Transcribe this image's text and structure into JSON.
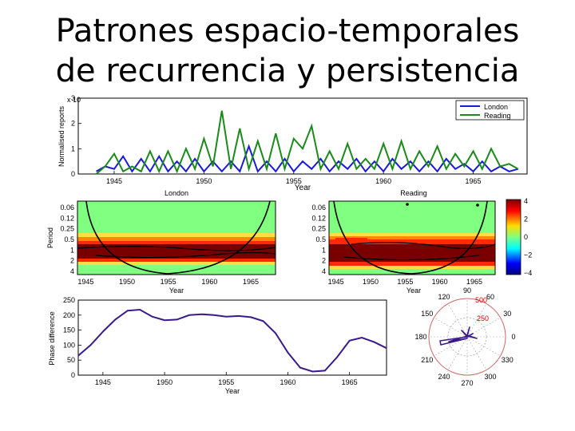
{
  "slide": {
    "title_line1": "Patrones espacio-temporales",
    "title_line2": "de recurrencia y persistencia"
  },
  "panel1": {
    "ylabel": "Normalised reports",
    "xlabel": "Year",
    "y_ticks": [
      "0",
      "1",
      "2",
      "3"
    ],
    "x_ticks": [
      "1945",
      "1950",
      "1955",
      "1960",
      "1965"
    ],
    "legend": [
      {
        "name": "London",
        "color": "#1a1adc"
      },
      {
        "name": "Reading",
        "color": "#1a8a1a"
      }
    ]
  },
  "wavelet": {
    "left_title": "London",
    "right_title": "Reading",
    "ylabel": "Period",
    "xlabel": "Year",
    "y_ticks": [
      "0.06",
      "0.12",
      "0.25",
      "0.5",
      "1",
      "2",
      "4"
    ],
    "x_ticks": [
      "1945",
      "1950",
      "1955",
      "1960",
      "1965"
    ],
    "colorbar_ticks": [
      "4",
      "2",
      "0",
      "−2",
      "−4"
    ]
  },
  "phase": {
    "ylabel": "Phase difference",
    "xlabel": "Year",
    "y_ticks": [
      "250",
      "200",
      "150",
      "100",
      "50",
      "0"
    ],
    "x_ticks": [
      "1945",
      "1950",
      "1955",
      "1960",
      "1965"
    ]
  },
  "polar": {
    "angle_labels": [
      "90",
      "60",
      "30",
      "0",
      "330",
      "300",
      "270",
      "240",
      "210",
      "180",
      "150",
      "120"
    ],
    "radius_labels": [
      "500",
      "250"
    ]
  },
  "chart_data": [
    {
      "type": "line",
      "xlabel": "Year",
      "ylabel": "Normalised reports",
      "xlim": [
        1943,
        1968
      ],
      "ylim": [
        0,
        3
      ],
      "series": [
        {
          "name": "London",
          "x": [
            1944.0,
            1944.5,
            1945.0,
            1945.5,
            1946.0,
            1946.5,
            1947.0,
            1947.5,
            1948.0,
            1948.5,
            1949.0,
            1949.5,
            1950.0,
            1950.5,
            1951.0,
            1951.5,
            1952.0,
            1952.5,
            1953.0,
            1953.5,
            1954.0,
            1954.5,
            1955.0,
            1955.5,
            1956.0,
            1956.5,
            1957.0,
            1957.5,
            1958.0,
            1958.5,
            1959.0,
            1959.5,
            1960.0,
            1960.5,
            1961.0,
            1961.5,
            1962.0,
            1962.5,
            1963.0,
            1963.5,
            1964.0,
            1964.5,
            1965.0,
            1965.5,
            1966.0,
            1966.5,
            1967.0,
            1967.5
          ],
          "values": [
            0.1,
            0.3,
            0.2,
            0.7,
            0.1,
            0.6,
            0.1,
            0.7,
            0.1,
            0.5,
            0.1,
            0.6,
            0.1,
            0.5,
            0.1,
            0.5,
            0.1,
            1.1,
            0.1,
            0.5,
            0.1,
            0.6,
            0.1,
            0.5,
            0.2,
            0.6,
            0.1,
            0.5,
            0.2,
            0.6,
            0.1,
            0.5,
            0.1,
            0.6,
            0.2,
            0.5,
            0.1,
            0.5,
            0.1,
            0.6,
            0.2,
            0.4,
            0.1,
            0.5,
            0.1,
            0.3,
            0.1,
            0.2
          ]
        },
        {
          "name": "Reading",
          "x": [
            1944.0,
            1944.5,
            1945.0,
            1945.5,
            1946.0,
            1946.5,
            1947.0,
            1947.5,
            1948.0,
            1948.5,
            1949.0,
            1949.5,
            1950.0,
            1950.5,
            1951.0,
            1951.5,
            1952.0,
            1952.5,
            1953.0,
            1953.5,
            1954.0,
            1954.5,
            1955.0,
            1955.5,
            1956.0,
            1956.5,
            1957.0,
            1957.5,
            1958.0,
            1958.5,
            1959.0,
            1959.5,
            1960.0,
            1960.5,
            1961.0,
            1961.5,
            1962.0,
            1962.5,
            1963.0,
            1963.5,
            1964.0,
            1964.5,
            1965.0,
            1965.5,
            1966.0,
            1966.5,
            1967.0,
            1967.5
          ],
          "values": [
            0.0,
            0.3,
            0.8,
            0.1,
            0.3,
            0.1,
            0.9,
            0.1,
            0.9,
            0.1,
            1.0,
            0.2,
            1.4,
            0.3,
            2.5,
            0.2,
            1.8,
            0.2,
            1.3,
            0.2,
            1.6,
            0.2,
            1.4,
            1.0,
            1.9,
            0.2,
            0.9,
            0.2,
            1.2,
            0.2,
            0.6,
            0.2,
            1.2,
            0.2,
            1.3,
            0.2,
            0.9,
            0.3,
            1.1,
            0.2,
            0.8,
            0.3,
            0.9,
            0.2,
            1.0,
            0.3,
            0.4,
            0.2
          ]
        }
      ]
    },
    {
      "type": "heatmap",
      "title": "London",
      "xlabel": "Year",
      "ylabel": "Period",
      "xlim": [
        1944,
        1968
      ],
      "y_ticks": [
        "0.06",
        "0.12",
        "0.25",
        "0.5",
        "1",
        "2",
        "4"
      ],
      "colorbar_range": [
        -4,
        4
      ]
    },
    {
      "type": "heatmap",
      "title": "Reading",
      "xlabel": "Year",
      "ylabel": "Period",
      "xlim": [
        1944,
        1968
      ],
      "y_ticks": [
        "0.06",
        "0.12",
        "0.25",
        "0.5",
        "1",
        "2",
        "4"
      ],
      "colorbar_range": [
        -4,
        4
      ]
    },
    {
      "type": "line",
      "xlabel": "Year",
      "ylabel": "Phase difference",
      "xlim": [
        1943,
        1968
      ],
      "ylim": [
        0,
        250
      ],
      "series": [
        {
          "x": [
            1943.0,
            1944.0,
            1945.0,
            1946.0,
            1947.0,
            1948.0,
            1949.0,
            1950.0,
            1951.0,
            1952.0,
            1953.0,
            1954.0,
            1955.0,
            1956.0,
            1957.0,
            1958.0,
            1959.0,
            1960.0,
            1961.0,
            1962.0,
            1963.0,
            1964.0,
            1965.0,
            1966.0,
            1967.0,
            1968.0
          ],
          "values": [
            65,
            100,
            145,
            185,
            215,
            218,
            195,
            183,
            185,
            200,
            203,
            200,
            195,
            197,
            193,
            180,
            140,
            75,
            25,
            12,
            15,
            60,
            115,
            125,
            110,
            90
          ]
        }
      ]
    },
    {
      "type": "scatter",
      "polar": true,
      "angle_labels": [
        "90",
        "60",
        "30",
        "0",
        "330",
        "300",
        "270",
        "240",
        "210",
        "180",
        "150",
        "120"
      ],
      "radius_labels": [
        "500",
        "250"
      ]
    }
  ]
}
